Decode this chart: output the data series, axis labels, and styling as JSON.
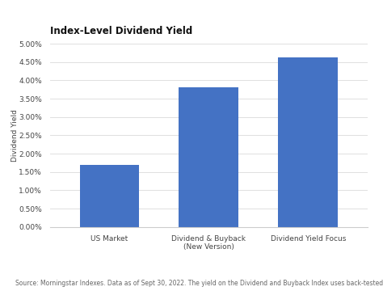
{
  "title": "Index-Level Dividend Yield",
  "categories": [
    "US Market",
    "Dividend & Buyback\n(New Version)",
    "Dividend Yield Focus"
  ],
  "values": [
    0.017,
    0.038,
    0.0463
  ],
  "bar_color": "#4472C4",
  "ylabel": "Dividend Yield",
  "ylim": [
    0,
    0.05
  ],
  "yticks": [
    0.0,
    0.005,
    0.01,
    0.015,
    0.02,
    0.025,
    0.03,
    0.035,
    0.04,
    0.045,
    0.05
  ],
  "ytick_labels": [
    "0.00%",
    "0.50%",
    "1.00%",
    "1.50%",
    "2.00%",
    "2.50%",
    "3.00%",
    "3.50%",
    "4.00%",
    "4.50%",
    "5.00%"
  ],
  "footnote": "Source: Morningstar Indexes. Data as of Sept 30, 2022. The yield on the Dividend and Buyback Index uses back-tested data.",
  "background_color": "#ffffff",
  "grid_color": "#e0e0e0",
  "title_fontsize": 8.5,
  "axis_label_fontsize": 6.5,
  "tick_fontsize": 6.5,
  "footnote_fontsize": 5.5
}
